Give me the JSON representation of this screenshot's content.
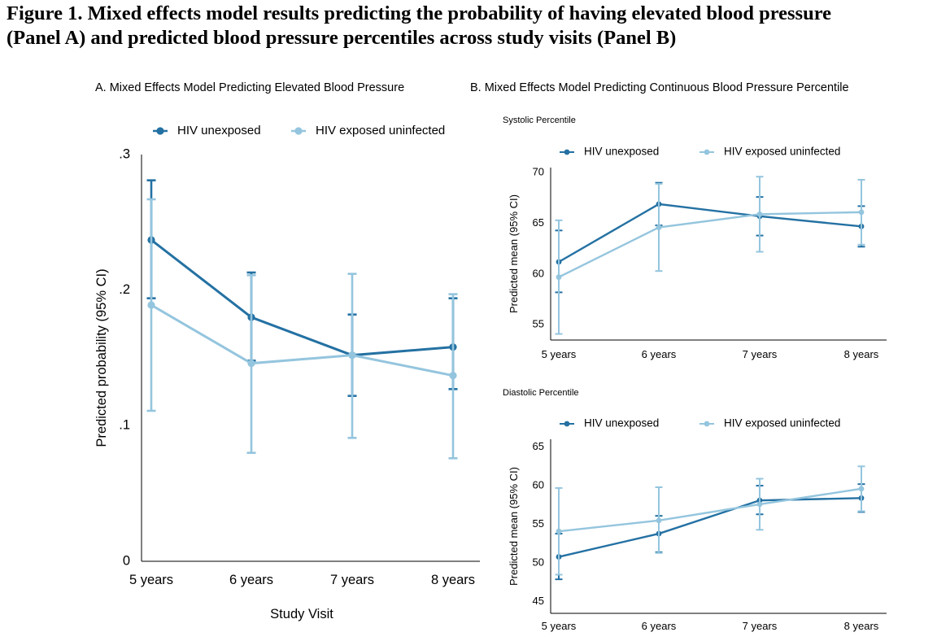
{
  "figure_title": {
    "line1": "Figure 1. Mixed effects model results predicting the probability of having elevated blood pressure",
    "line2": "(Panel A) and predicted blood pressure percentiles across study visits (Panel B)"
  },
  "colors": {
    "hiv_unexposed": "#2471a3",
    "hiv_exposed_uninfected": "#94c5de"
  },
  "chart_data": [
    {
      "id": "A",
      "type": "line",
      "panel_title": "A. Mixed Effects Model Predicting Elevated Blood Pressure",
      "subtitle": "",
      "xlabel": "Study Visit",
      "ylabel": "Predicted probability (95% CI)",
      "categories": [
        "5 years",
        "6 years",
        "7 years",
        "8 years"
      ],
      "ylim": [
        0,
        0.3
      ],
      "yticks": [
        0,
        0.1,
        0.2,
        0.3
      ],
      "ytick_labels": [
        "0",
        ".1",
        ".2",
        ".3"
      ],
      "legend_position": "top",
      "grid": false,
      "series": [
        {
          "name": "HIV unexposed",
          "color": "#2471a3",
          "values": [
            0.237,
            0.18,
            0.152,
            0.158
          ],
          "ci_low": [
            0.194,
            0.148,
            0.122,
            0.127
          ],
          "ci_high": [
            0.281,
            0.213,
            0.182,
            0.194
          ]
        },
        {
          "name": "HIV exposed uninfected",
          "color": "#94c5de",
          "values": [
            0.189,
            0.146,
            0.152,
            0.137
          ],
          "ci_low": [
            0.111,
            0.08,
            0.091,
            0.076
          ],
          "ci_high": [
            0.267,
            0.211,
            0.212,
            0.197
          ]
        }
      ]
    },
    {
      "id": "B-systolic",
      "type": "line",
      "panel_title": "B. Mixed Effects Model Predicting Continuous Blood Pressure Percentile",
      "subtitle": "Systolic Percentile",
      "xlabel": "",
      "ylabel": "Predicted mean (95% CI)",
      "categories": [
        "5 years",
        "6 years",
        "7 years",
        "8 years"
      ],
      "ylim": [
        53.5,
        70.5
      ],
      "yticks": [
        55,
        60,
        65,
        70
      ],
      "ytick_labels": [
        "55",
        "60",
        "65",
        "70"
      ],
      "legend_position": "top",
      "grid": false,
      "series": [
        {
          "name": "HIV unexposed",
          "color": "#2471a3",
          "values": [
            61.2,
            66.9,
            65.7,
            64.7
          ],
          "ci_low": [
            58.2,
            64.8,
            63.8,
            62.7
          ],
          "ci_high": [
            64.3,
            69.0,
            67.6,
            66.7
          ]
        },
        {
          "name": "HIV exposed uninfected",
          "color": "#94c5de",
          "values": [
            59.7,
            64.6,
            65.9,
            66.1
          ],
          "ci_low": [
            54.1,
            60.3,
            62.2,
            62.9
          ],
          "ci_high": [
            65.3,
            68.9,
            69.6,
            69.3
          ]
        }
      ]
    },
    {
      "id": "B-diastolic",
      "type": "line",
      "panel_title": "",
      "subtitle": "Diastolic Percentile",
      "xlabel": "",
      "ylabel": "Predicted mean (95% CI)",
      "categories": [
        "5 years",
        "6 years",
        "7 years",
        "8 years"
      ],
      "ylim": [
        43.5,
        66
      ],
      "yticks": [
        45,
        50,
        55,
        60,
        65
      ],
      "ytick_labels": [
        "45",
        "50",
        "55",
        "60",
        "65"
      ],
      "legend_position": "top",
      "grid": false,
      "series": [
        {
          "name": "HIV unexposed",
          "color": "#2471a3",
          "values": [
            50.8,
            53.8,
            58.1,
            58.4
          ],
          "ci_low": [
            47.9,
            51.4,
            56.3,
            56.6
          ],
          "ci_high": [
            53.8,
            56.1,
            60.0,
            60.2
          ]
        },
        {
          "name": "HIV exposed uninfected",
          "color": "#94c5de",
          "values": [
            54.1,
            55.5,
            57.6,
            59.6
          ],
          "ci_low": [
            48.5,
            51.3,
            54.3,
            56.7
          ],
          "ci_high": [
            59.7,
            59.8,
            60.9,
            62.5
          ]
        }
      ]
    }
  ]
}
